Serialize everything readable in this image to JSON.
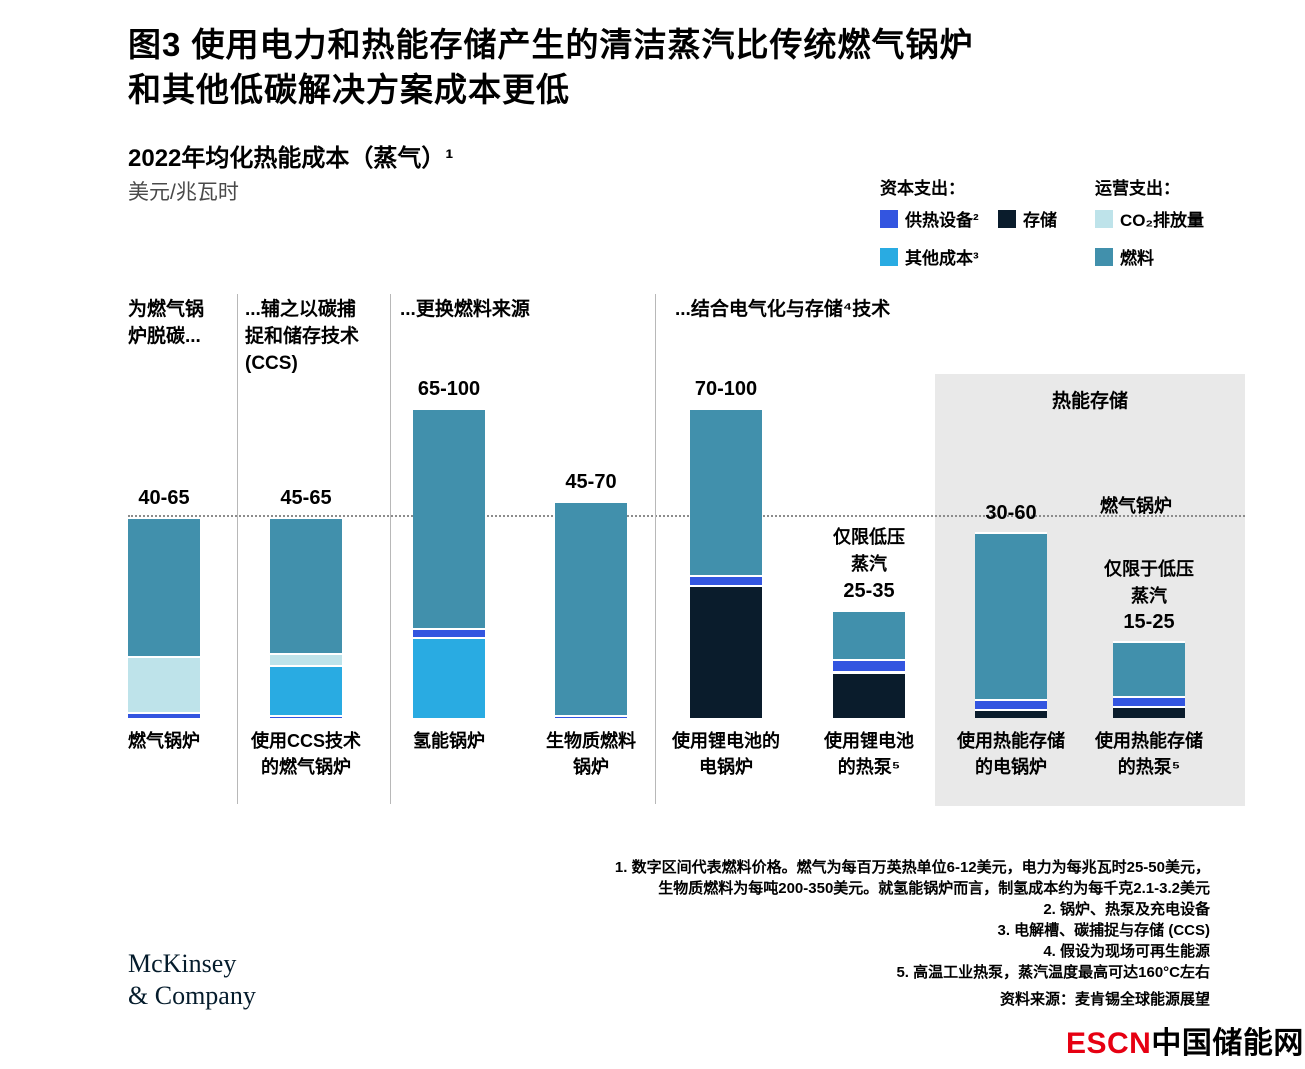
{
  "header": {
    "title_line1": "图3 使用电力和热能存储产生的清洁蒸汽比传统燃气锅炉",
    "title_line2": "和其他低碳解决方案成本更低",
    "subtitle": "2022年均化热能成本（蒸气）¹",
    "unit": "美元/兆瓦时"
  },
  "legend": {
    "capex": {
      "header": "资本支出：",
      "items": [
        {
          "key": "equipment",
          "label": "供热设备²"
        },
        {
          "key": "storage",
          "label": "存储"
        },
        {
          "key": "other",
          "label": "其他成本³"
        }
      ]
    },
    "opex": {
      "header": "运营支出：",
      "items": [
        {
          "key": "co2",
          "label": "CO₂排放量"
        },
        {
          "key": "fuel",
          "label": "燃料"
        }
      ]
    }
  },
  "chart_data": {
    "type": "bar",
    "stacked": true,
    "title": "2022年均化热能成本（蒸气）¹",
    "ylabel": "美元/兆瓦时",
    "ylim": [
      0,
      105
    ],
    "grid": false,
    "reference_line": {
      "value": 65,
      "label": "燃气锅炉"
    },
    "highlight_box_label": "热能存储",
    "segment_labels": {
      "equipment": "供热设备",
      "storage": "存储",
      "other": "其他成本",
      "co2": "CO₂排放量",
      "fuel": "燃料"
    },
    "segment_colors": {
      "equipment": "#3355e0",
      "storage": "#0a1c2c",
      "other": "#29abe2",
      "co2": "#bee3ea",
      "fuel": "#4190ac"
    },
    "group_headers": [
      {
        "lines": [
          "为燃气锅",
          "炉脱碳..."
        ]
      },
      {
        "lines": [
          "...辅之以碳捕",
          "捉和储存技术",
          "(CCS)"
        ]
      },
      {
        "lines": [
          "...更换燃料来源"
        ]
      },
      {
        "lines": [
          "...结合电气化与存储⁴技术"
        ]
      }
    ],
    "bars": [
      {
        "name": "燃气锅炉",
        "label_lines": [
          "燃气锅炉"
        ],
        "range": "40-65",
        "segments": [
          {
            "key": "equipment",
            "value": 2
          },
          {
            "key": "co2",
            "value": 18
          },
          {
            "key": "fuel",
            "value": 45
          }
        ]
      },
      {
        "name": "使用CCS技术的燃气锅炉",
        "label_lines": [
          "使用CCS技术",
          "的燃气锅炉"
        ],
        "range": "45-65",
        "segments": [
          {
            "key": "equipment",
            "value": 1
          },
          {
            "key": "other",
            "value": 16
          },
          {
            "key": "co2",
            "value": 4
          },
          {
            "key": "fuel",
            "value": 44
          }
        ]
      },
      {
        "name": "氢能锅炉",
        "label_lines": [
          "氢能锅炉"
        ],
        "range": "65-100",
        "segments": [
          {
            "key": "other",
            "value": 26
          },
          {
            "key": "equipment",
            "value": 3
          },
          {
            "key": "fuel",
            "value": 71
          }
        ]
      },
      {
        "name": "生物质燃料锅炉",
        "label_lines": [
          "生物质燃料",
          "锅炉"
        ],
        "range": "45-70",
        "segments": [
          {
            "key": "equipment",
            "value": 1
          },
          {
            "key": "fuel",
            "value": 69
          }
        ]
      },
      {
        "name": "使用锂电池的电锅炉",
        "label_lines": [
          "使用锂电池的",
          "电锅炉"
        ],
        "range": "70-100",
        "segments": [
          {
            "key": "storage",
            "value": 43
          },
          {
            "key": "equipment",
            "value": 3
          },
          {
            "key": "fuel",
            "value": 54
          }
        ]
      },
      {
        "name": "使用锂电池的热泵",
        "label_lines": [
          "使用锂电池",
          "的热泵⁵"
        ],
        "range": "25-35",
        "note_lines": [
          "仅限低压",
          "蒸汽"
        ],
        "segments": [
          {
            "key": "storage",
            "value": 15
          },
          {
            "key": "equipment",
            "value": 4
          },
          {
            "key": "fuel",
            "value": 16
          }
        ]
      },
      {
        "name": "使用热能存储的电锅炉",
        "label_lines": [
          "使用热能存储",
          "的电锅炉"
        ],
        "range": "30-60",
        "segments": [
          {
            "key": "storage",
            "value": 3
          },
          {
            "key": "equipment",
            "value": 3
          },
          {
            "key": "fuel",
            "value": 54
          }
        ]
      },
      {
        "name": "使用热能存储的热泵",
        "label_lines": [
          "使用热能存储",
          "的热泵⁵"
        ],
        "range": "15-25",
        "note_lines": [
          "仅限于低压",
          "蒸汽"
        ],
        "segments": [
          {
            "key": "storage",
            "value": 4
          },
          {
            "key": "equipment",
            "value": 3
          },
          {
            "key": "fuel",
            "value": 18
          }
        ]
      }
    ]
  },
  "footnotes": [
    "1. 数字区间代表燃料价格。燃气为每百万英热单位6-12美元，电力为每兆瓦时25-50美元，",
    "生物质燃料为每吨200-350美元。就氢能锅炉而言，制氢成本约为每千克2.1-3.2美元",
    "2. 锅炉、热泵及充电设备",
    "3. 电解槽、碳捕捉与存储 (CCS)",
    "4. 假设为现场可再生能源",
    "5. 高温工业热泵，蒸汽温度最高可达160°C左右"
  ],
  "source": "资料来源：麦肯锡全球能源展望",
  "logos": {
    "mckinsey_line1": "McKinsey",
    "mckinsey_line2": "& Company",
    "escn_red": "ESCN",
    "escn_black": "中国储能网"
  },
  "colors": {
    "gray_box": "#e9e9e9",
    "escn_red": "#e60012",
    "reference_line": "#8c8c8c"
  }
}
